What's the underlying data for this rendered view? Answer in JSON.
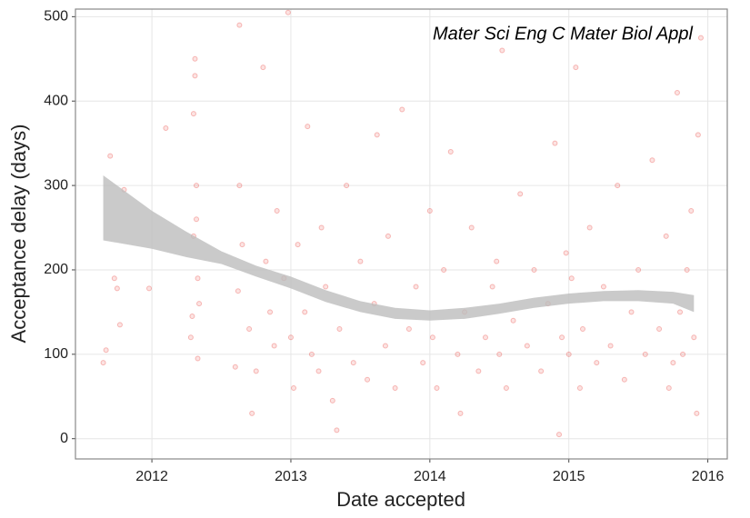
{
  "chart_data": {
    "type": "scatter",
    "annotation": "Mater Sci Eng C Mater Biol Appl",
    "x_label": "Date accepted",
    "y_label": "Acceptance delay (days)",
    "color": "#e8413c",
    "grid": true,
    "xlim": [
      2011.45,
      2016.14
    ],
    "xticks": [
      2012,
      2013,
      2014,
      2015,
      2016
    ],
    "ylim": [
      -24,
      509
    ],
    "yticks": [
      0,
      100,
      200,
      300,
      400,
      500
    ],
    "x": [
      2011.65,
      2011.67,
      2011.7,
      2011.73,
      2011.75,
      2011.77,
      2011.8,
      2011.98,
      2012.1,
      2012.28,
      2012.29,
      2012.3,
      2012.3,
      2012.31,
      2012.31,
      2012.32,
      2012.32,
      2012.33,
      2012.33,
      2012.34,
      2012.6,
      2012.62,
      2012.63,
      2012.63,
      2012.65,
      2012.7,
      2012.72,
      2012.75,
      2012.8,
      2012.82,
      2012.85,
      2012.88,
      2012.9,
      2012.95,
      2012.98,
      2013.0,
      2013.02,
      2013.05,
      2013.1,
      2013.12,
      2013.15,
      2013.2,
      2013.22,
      2013.25,
      2013.3,
      2013.33,
      2013.35,
      2013.4,
      2013.45,
      2013.5,
      2013.55,
      2013.6,
      2013.62,
      2013.68,
      2013.7,
      2013.75,
      2013.8,
      2013.85,
      2013.9,
      2013.95,
      2014.0,
      2014.02,
      2014.05,
      2014.1,
      2014.15,
      2014.2,
      2014.22,
      2014.25,
      2014.3,
      2014.35,
      2014.4,
      2014.45,
      2014.48,
      2014.5,
      2014.52,
      2014.55,
      2014.6,
      2014.65,
      2014.7,
      2014.75,
      2014.8,
      2014.85,
      2014.9,
      2014.93,
      2014.95,
      2014.98,
      2015.0,
      2015.02,
      2015.05,
      2015.08,
      2015.1,
      2015.15,
      2015.2,
      2015.25,
      2015.3,
      2015.35,
      2015.4,
      2015.45,
      2015.5,
      2015.55,
      2015.6,
      2015.65,
      2015.7,
      2015.72,
      2015.75,
      2015.78,
      2015.8,
      2015.82,
      2015.85,
      2015.88,
      2015.9,
      2015.92,
      2015.93,
      2015.95
    ],
    "values": [
      90,
      105,
      335,
      190,
      178,
      135,
      295,
      178,
      368,
      120,
      145,
      240,
      385,
      430,
      450,
      260,
      300,
      190,
      95,
      160,
      85,
      175,
      300,
      490,
      230,
      130,
      30,
      80,
      440,
      210,
      150,
      110,
      270,
      190,
      505,
      120,
      60,
      230,
      150,
      370,
      100,
      80,
      250,
      180,
      45,
      10,
      130,
      300,
      90,
      210,
      70,
      160,
      360,
      110,
      240,
      60,
      390,
      130,
      180,
      90,
      270,
      120,
      60,
      200,
      340,
      100,
      30,
      150,
      250,
      80,
      120,
      180,
      210,
      100,
      460,
      60,
      140,
      290,
      110,
      200,
      80,
      160,
      350,
      5,
      120,
      220,
      100,
      190,
      440,
      60,
      130,
      250,
      90,
      180,
      110,
      300,
      70,
      150,
      200,
      100,
      330,
      130,
      240,
      60,
      90,
      410,
      150,
      100,
      200,
      270,
      120,
      30,
      360,
      475
    ],
    "smooth": {
      "color": "#bdbdbd",
      "x": [
        2011.65,
        2012.0,
        2012.25,
        2012.5,
        2012.75,
        2013.0,
        2013.25,
        2013.5,
        2013.75,
        2014.0,
        2014.25,
        2014.5,
        2014.75,
        2015.0,
        2015.25,
        2015.5,
        2015.75,
        2015.9
      ],
      "lower": [
        235,
        225,
        215,
        207,
        192,
        178,
        162,
        150,
        142,
        140,
        142,
        148,
        155,
        160,
        163,
        163,
        160,
        150
      ],
      "upper": [
        312,
        270,
        245,
        222,
        205,
        192,
        176,
        163,
        155,
        152,
        155,
        160,
        167,
        172,
        175,
        176,
        174,
        170
      ]
    }
  }
}
